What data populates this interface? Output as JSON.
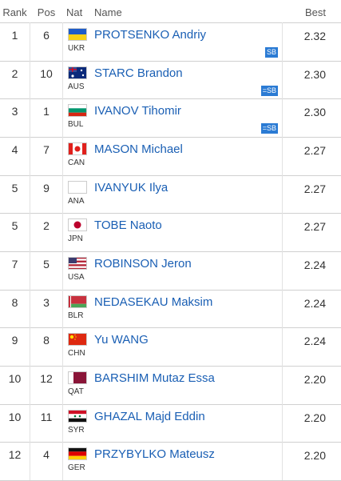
{
  "table": {
    "header": [
      "Rank",
      "Pos",
      "Nat",
      "Name",
      "Best"
    ],
    "rows": [
      {
        "rank": "1",
        "pos": "6",
        "nat": "UKR",
        "name": "PROTSENKO Andriy",
        "best": "2.32",
        "note": "SB"
      },
      {
        "rank": "2",
        "pos": "10",
        "nat": "AUS",
        "name": "STARC Brandon",
        "best": "2.30",
        "note": "=SB"
      },
      {
        "rank": "3",
        "pos": "1",
        "nat": "BUL",
        "name": "IVANOV Tihomir",
        "best": "2.30",
        "note": "=SB"
      },
      {
        "rank": "4",
        "pos": "7",
        "nat": "CAN",
        "name": "MASON Michael",
        "best": "2.27"
      },
      {
        "rank": "5",
        "pos": "9",
        "nat": "ANA",
        "name": "IVANYUK Ilya",
        "best": "2.27"
      },
      {
        "rank": "5",
        "pos": "2",
        "nat": "JPN",
        "name": "TOBE Naoto",
        "best": "2.27"
      },
      {
        "rank": "7",
        "pos": "5",
        "nat": "USA",
        "name": "ROBINSON Jeron",
        "best": "2.24"
      },
      {
        "rank": "8",
        "pos": "3",
        "nat": "BLR",
        "name": "NEDASEKAU Maksim",
        "best": "2.24"
      },
      {
        "rank": "9",
        "pos": "8",
        "nat": "CHN",
        "name": "Yu WANG",
        "best": "2.24"
      },
      {
        "rank": "10",
        "pos": "12",
        "nat": "QAT",
        "name": "BARSHIM Mutaz Essa",
        "best": "2.20"
      },
      {
        "rank": "10",
        "pos": "11",
        "nat": "SYR",
        "name": "GHAZAL Majd Eddin",
        "best": "2.20"
      },
      {
        "rank": "12",
        "pos": "4",
        "nat": "GER",
        "name": "PRZYBYLKO Mateusz",
        "best": "2.20"
      }
    ]
  }
}
